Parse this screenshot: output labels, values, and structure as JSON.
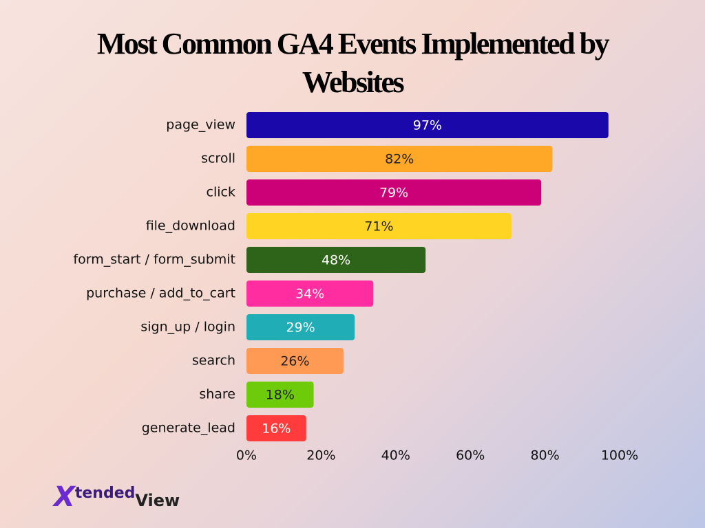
{
  "chart_data": {
    "type": "barh",
    "title": "Most Common GA4 Events Implemented by Websites",
    "categories": [
      "page_view",
      "scroll",
      "click",
      "file_download",
      "form_start / form_submit",
      "purchase / add_to_cart",
      "sign_up / login",
      "search",
      "share",
      "generate_lead"
    ],
    "values": [
      97,
      82,
      79,
      71,
      48,
      34,
      29,
      26,
      18,
      16
    ],
    "value_labels": [
      "97%",
      "82%",
      "79%",
      "71%",
      "48%",
      "34%",
      "29%",
      "26%",
      "18%",
      "16%"
    ],
    "colors": [
      "#1a08ab",
      "#ffa726",
      "#cc0077",
      "#ffd422",
      "#2e6419",
      "#ff2d9f",
      "#20adb5",
      "#ff9a55",
      "#6ecb0a",
      "#ff3b3b"
    ],
    "xlim": [
      0,
      100
    ],
    "xticks": [
      {
        "value": 0,
        "label": "0%"
      },
      {
        "value": 20,
        "label": "20%"
      },
      {
        "value": 40,
        "label": "40%"
      },
      {
        "value": 60,
        "label": "60%"
      },
      {
        "value": 80,
        "label": "80%"
      },
      {
        "value": 100,
        "label": "100%"
      }
    ],
    "grid": false
  },
  "brand": {
    "mark": "X",
    "word1": "tended",
    "word2": "View"
  }
}
